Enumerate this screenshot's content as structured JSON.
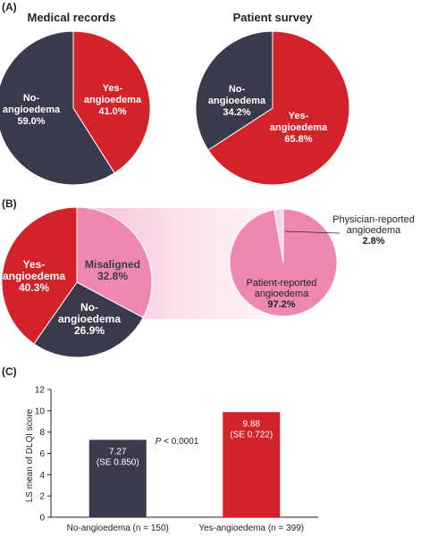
{
  "colors": {
    "red": "#d3222a",
    "dark": "#3b3a4c",
    "pink": "#ef88b1",
    "pale_pink": "#fbd6e4",
    "white": "#ffffff",
    "text": "#222222"
  },
  "panel_labels": {
    "a": "(A)",
    "b": "(B)",
    "c": "(C)"
  },
  "chart_data": [
    {
      "type": "pie",
      "panel": "(A)",
      "title": "Medical records",
      "slices": [
        {
          "label_lines": [
            "Yes-",
            "angioedema",
            "41.0%"
          ],
          "value": 41.0,
          "color": "#d3222a"
        },
        {
          "label_lines": [
            "No-",
            "angioedema",
            "59.0%"
          ],
          "value": 59.0,
          "color": "#3b3a4c"
        }
      ]
    },
    {
      "type": "pie",
      "panel": "(A)",
      "title": "Patient survey",
      "slices": [
        {
          "label_lines": [
            "Yes-",
            "angioedema",
            "65.8%"
          ],
          "value": 65.8,
          "color": "#d3222a"
        },
        {
          "label_lines": [
            "No-",
            "angioedema",
            "34.2%"
          ],
          "value": 34.2,
          "color": "#3b3a4c"
        }
      ]
    },
    {
      "type": "pie",
      "panel": "(B)",
      "title": "",
      "slices": [
        {
          "label_lines": [
            "Misaligned",
            "32.8%"
          ],
          "value": 32.8,
          "color": "#ef88b1"
        },
        {
          "label_lines": [
            "No-",
            "angioedema",
            "26.9%"
          ],
          "value": 26.9,
          "color": "#3b3a4c"
        },
        {
          "label_lines": [
            "Yes-",
            "angioedema",
            "40.3%"
          ],
          "value": 40.3,
          "color": "#d3222a"
        }
      ]
    },
    {
      "type": "pie",
      "panel": "(B)",
      "title": "",
      "slices": [
        {
          "label_lines": [
            "Physician-reported",
            "angioedema",
            "2.8%"
          ],
          "value": 2.8,
          "color": "#fbd6e4"
        },
        {
          "label_lines": [
            "Patient-reported",
            "angioedema",
            "97.2%"
          ],
          "value": 97.2,
          "color": "#ef88b1"
        }
      ]
    },
    {
      "type": "bar",
      "panel": "(C)",
      "title": "",
      "categories": [
        "No-angioedema (n = 150)",
        "Yes-angioedema (n = 399)"
      ],
      "values": [
        7.27,
        9.88
      ],
      "value_labels": [
        "7.27",
        "9.88"
      ],
      "se_labels": [
        "(SE 0.850)",
        "(SE 0.722)"
      ],
      "colors": [
        "#3b3a4c",
        "#d3222a"
      ],
      "ylabel": "LS mean of DLQI score",
      "ylim": [
        0,
        12
      ],
      "yticks": [
        "0",
        "2",
        "4",
        "6",
        "8",
        "10",
        "12"
      ],
      "annotation_italic": "P",
      "annotation_rest": " < 0.0001"
    }
  ]
}
